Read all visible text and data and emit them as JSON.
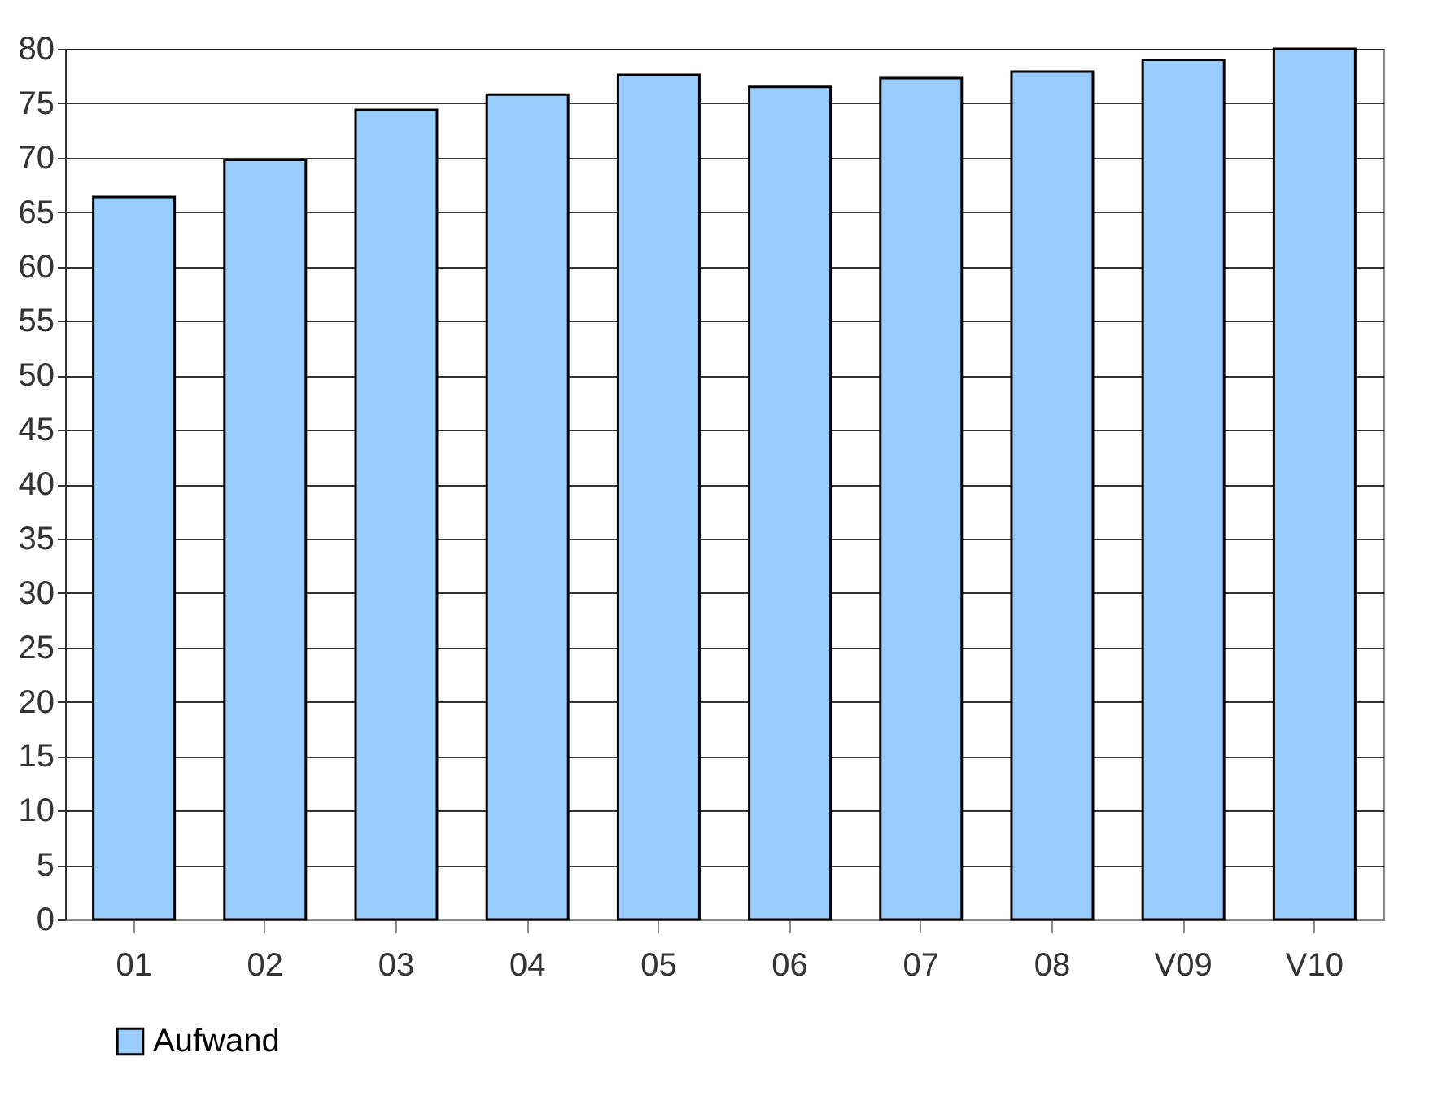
{
  "chart_data": {
    "type": "bar",
    "categories": [
      "01",
      "02",
      "03",
      "04",
      "05",
      "06",
      "07",
      "08",
      "V09",
      "V10"
    ],
    "series": [
      {
        "name": "Aufwand",
        "color": "#99ccff",
        "values": [
          66.4,
          69.8,
          74.4,
          75.8,
          77.6,
          76.5,
          77.3,
          77.9,
          79,
          80
        ]
      }
    ],
    "ylim": [
      0,
      80
    ],
    "yticks": [
      0,
      5,
      10,
      15,
      20,
      25,
      30,
      35,
      40,
      45,
      50,
      55,
      60,
      65,
      70,
      75,
      80
    ],
    "grid": "y",
    "legend": "bottom left"
  }
}
